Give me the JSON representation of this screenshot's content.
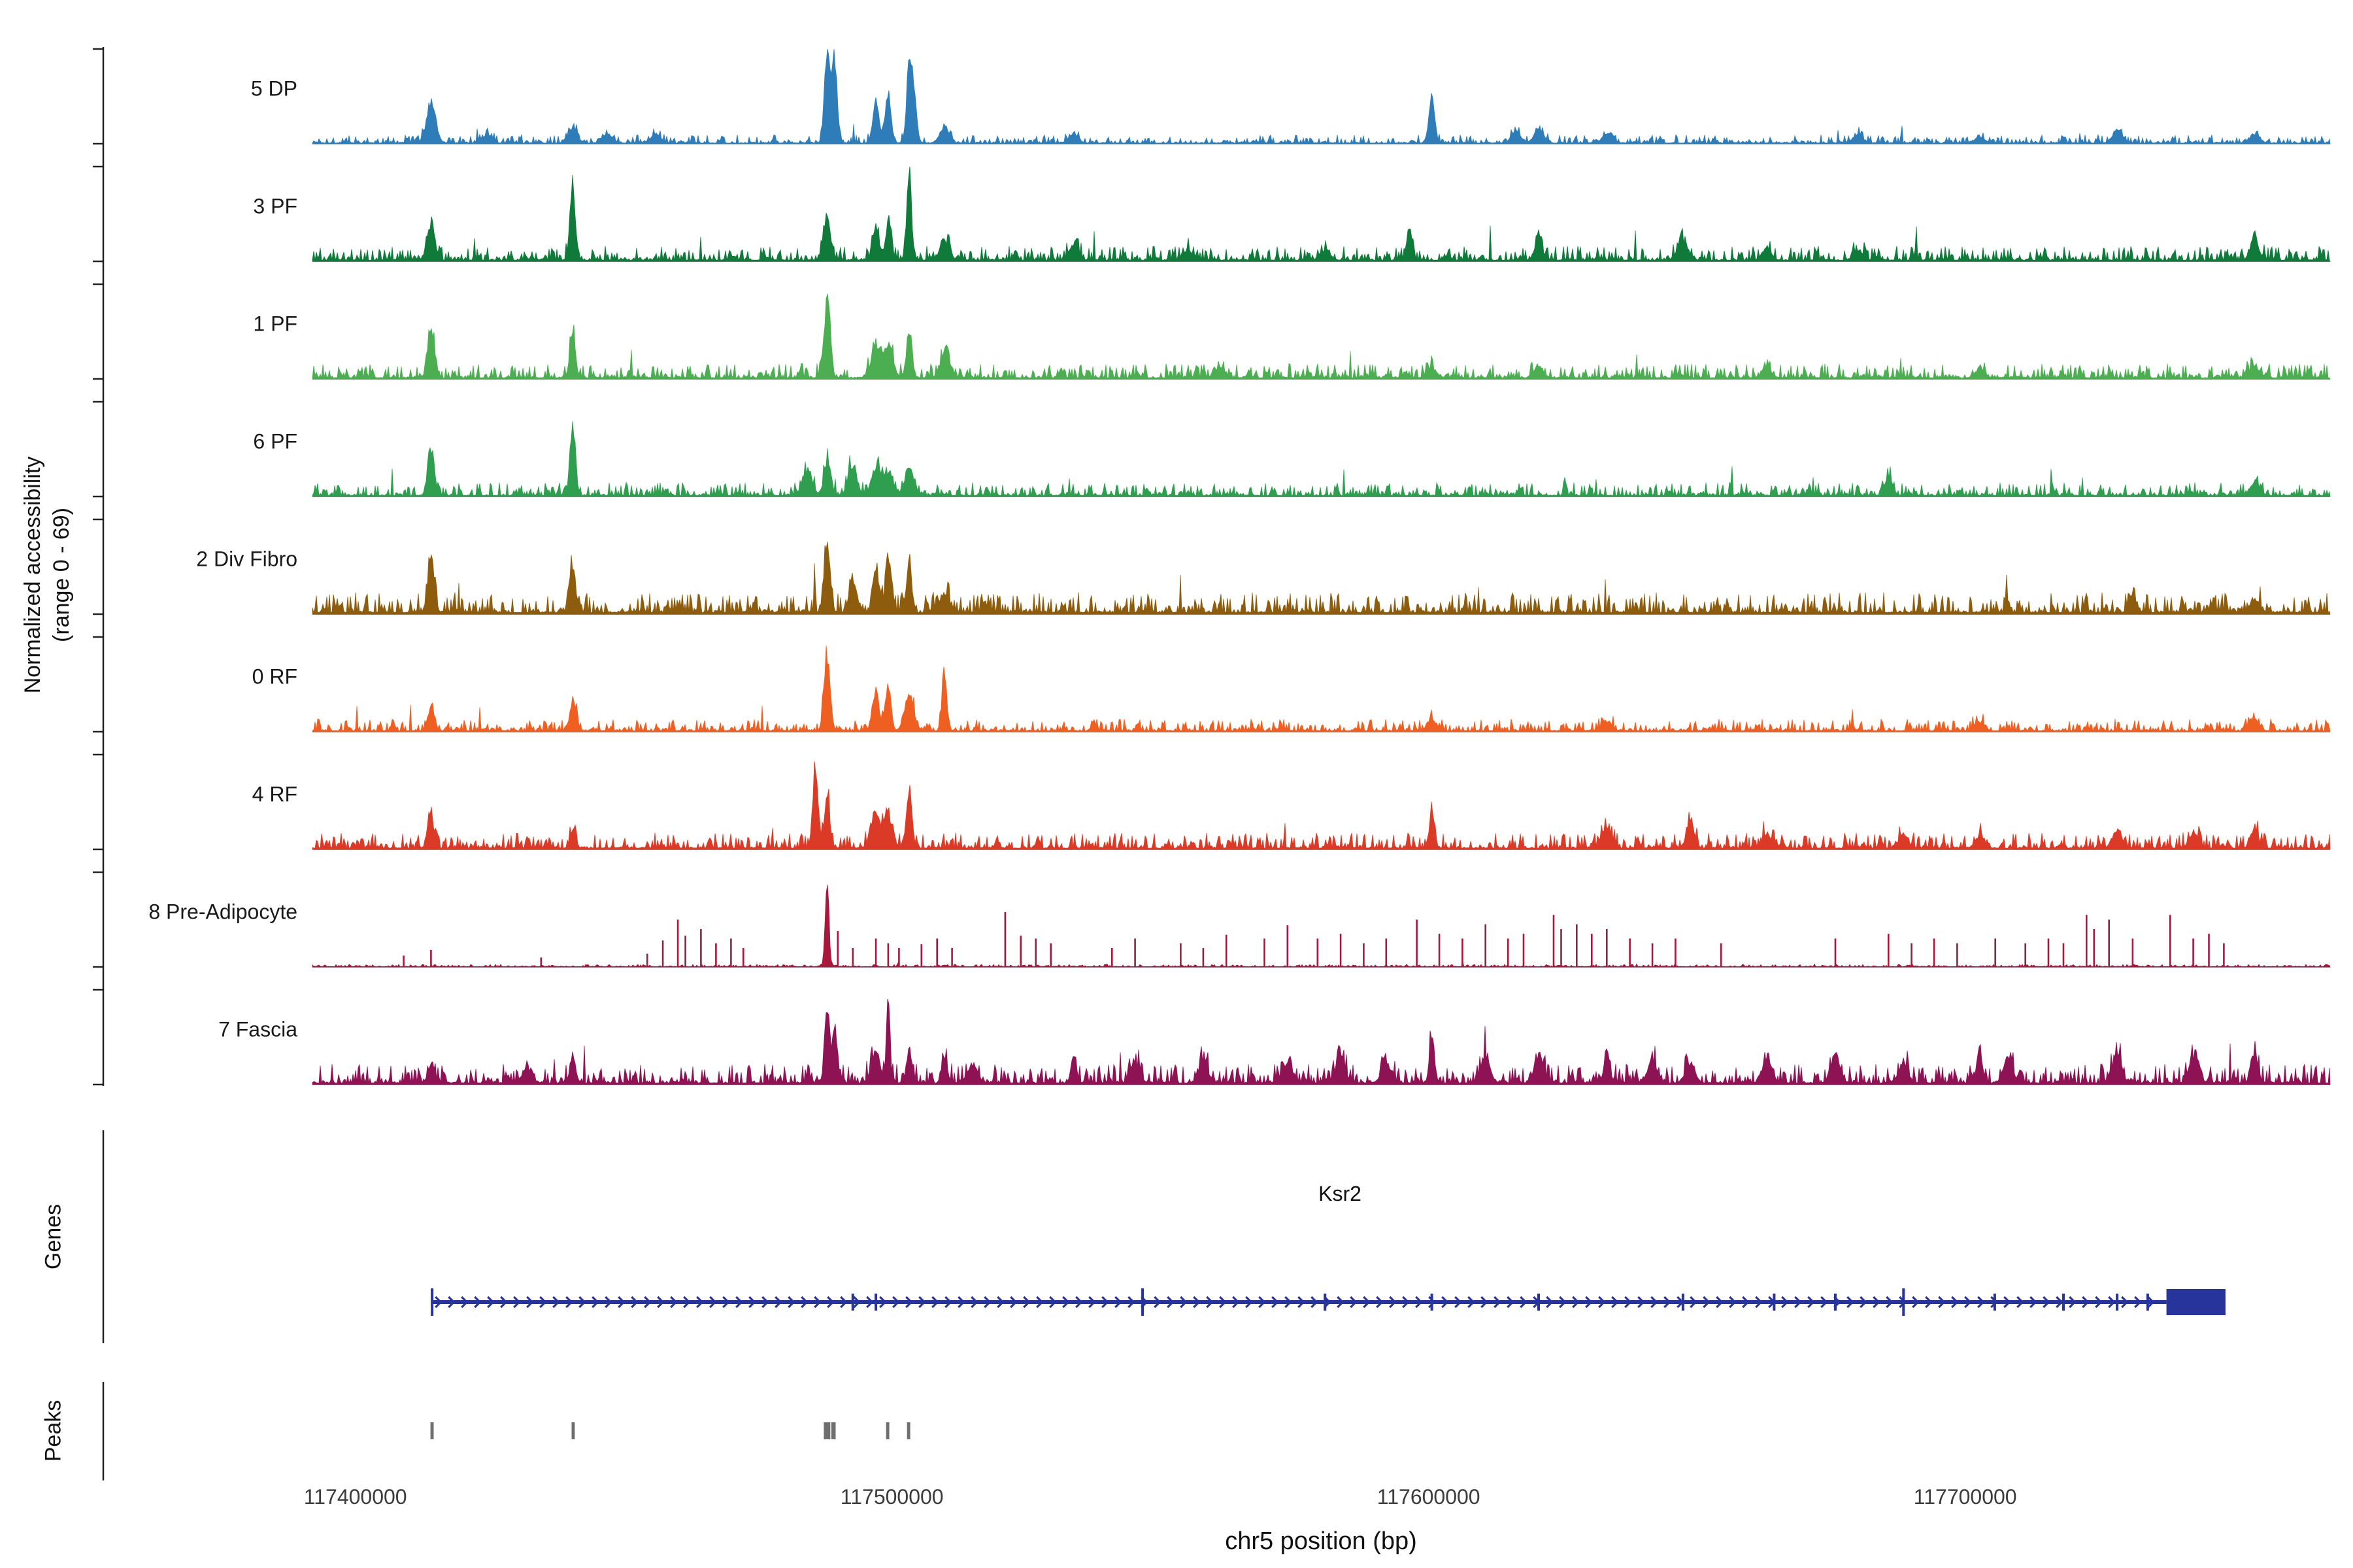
{
  "chart_data": {
    "type": "area",
    "title": "",
    "xlabel": "chr5 position (bp)",
    "ylabel_lines": [
      "Normalized accessibility",
      "(range 0 - 69)"
    ],
    "genes_section_label": "Genes",
    "peaks_section_label": "Peaks",
    "x_domain": [
      117392000,
      117768000
    ],
    "x_ticks": [
      117400000,
      117500000,
      117600000,
      117700000
    ],
    "y_range": [
      0,
      69
    ],
    "noise_seed": 1337,
    "tracks": [
      {
        "label": "5 DP",
        "color": "#2f7db8",
        "noise": 0.035,
        "peaks": [
          [
            117414100,
            0.42
          ],
          [
            117424600,
            0.08
          ],
          [
            117440500,
            0.16
          ],
          [
            117447300,
            0.08
          ],
          [
            117455900,
            0.1
          ],
          [
            117487900,
            1.0,
            500
          ],
          [
            117489300,
            0.85,
            500
          ],
          [
            117497000,
            0.42,
            600
          ],
          [
            117499300,
            0.5,
            500
          ],
          [
            117503200,
            0.78,
            500
          ],
          [
            117504100,
            0.5,
            500
          ],
          [
            117509800,
            0.18
          ],
          [
            117533900,
            0.1
          ],
          [
            117600600,
            0.55,
            500
          ],
          [
            117616300,
            0.12
          ],
          [
            117620500,
            0.15
          ],
          [
            117633200,
            0.1
          ],
          [
            117680000,
            0.1
          ],
          [
            117702700,
            0.07
          ],
          [
            117728300,
            0.14
          ],
          [
            117753900,
            0.1
          ]
        ],
        "spikes": []
      },
      {
        "label": "3 PF",
        "color": "#0f7a3a",
        "noise": 0.06,
        "peaks": [
          [
            117414100,
            0.38,
            700
          ],
          [
            117440500,
            0.75,
            500
          ],
          [
            117487900,
            0.5,
            600
          ],
          [
            117497000,
            0.3,
            600
          ],
          [
            117499300,
            0.42,
            500
          ],
          [
            117503200,
            0.88,
            450
          ],
          [
            117509800,
            0.2
          ],
          [
            117533900,
            0.15
          ],
          [
            117555200,
            0.1
          ],
          [
            117580800,
            0.1
          ],
          [
            117596400,
            0.32,
            500
          ],
          [
            117620500,
            0.28,
            600
          ],
          [
            117647400,
            0.2
          ],
          [
            117663000,
            0.12
          ],
          [
            117680000,
            0.1
          ],
          [
            117753900,
            0.22,
            800
          ]
        ],
        "spikes": []
      },
      {
        "label": "1 PF",
        "color": "#4bae50",
        "noise": 0.06,
        "peaks": [
          [
            117414100,
            0.55,
            600
          ],
          [
            117440500,
            0.5,
            500
          ],
          [
            117487900,
            0.78,
            550
          ],
          [
            117497000,
            0.3
          ],
          [
            117499300,
            0.33
          ],
          [
            117503200,
            0.5,
            500
          ],
          [
            117509800,
            0.24
          ],
          [
            117560900,
            0.1
          ],
          [
            117600600,
            0.1
          ],
          [
            117620500,
            0.12
          ],
          [
            117663000,
            0.1
          ],
          [
            117702700,
            0.08
          ],
          [
            117753900,
            0.12
          ]
        ],
        "spikes": []
      },
      {
        "label": "6 PF",
        "color": "#2f9e4f",
        "noise": 0.055,
        "peaks": [
          [
            117414100,
            0.5,
            600
          ],
          [
            117440500,
            0.75,
            500
          ],
          [
            117484200,
            0.25,
            900
          ],
          [
            117487900,
            0.33,
            600
          ],
          [
            117492700,
            0.3,
            800
          ],
          [
            117497000,
            0.28
          ],
          [
            117499300,
            0.24
          ],
          [
            117503200,
            0.28
          ],
          [
            117685700,
            0.2,
            700
          ],
          [
            117753900,
            0.12
          ]
        ],
        "spikes": []
      },
      {
        "label": "2 Div Fibro",
        "color": "#8e5c0d",
        "noise": 0.085,
        "peaks": [
          [
            117414100,
            0.58,
            600
          ],
          [
            117440500,
            0.48,
            550
          ],
          [
            117487900,
            0.8,
            550
          ],
          [
            117492700,
            0.3,
            700
          ],
          [
            117497000,
            0.45,
            550
          ],
          [
            117499300,
            0.5,
            500
          ],
          [
            117503200,
            0.5,
            500
          ],
          [
            117509800,
            0.2
          ],
          [
            117731200,
            0.18,
            700
          ],
          [
            117753900,
            0.14
          ]
        ],
        "spikes": []
      },
      {
        "label": "0 RF",
        "color": "#ef5f22",
        "noise": 0.05,
        "peaks": [
          [
            117414100,
            0.25,
            600
          ],
          [
            117440500,
            0.33,
            500
          ],
          [
            117487900,
            0.8,
            550
          ],
          [
            117497000,
            0.4,
            550
          ],
          [
            117499300,
            0.5,
            500
          ],
          [
            117503200,
            0.38
          ],
          [
            117509800,
            0.55,
            450
          ],
          [
            117600600,
            0.12
          ],
          [
            117633200,
            0.1
          ],
          [
            117702700,
            0.09
          ],
          [
            117753900,
            0.12
          ]
        ],
        "spikes": []
      },
      {
        "label": "4 RF",
        "color": "#db3b26",
        "noise": 0.065,
        "peaks": [
          [
            117414100,
            0.3,
            600
          ],
          [
            117440500,
            0.2,
            500
          ],
          [
            117485700,
            0.8,
            500
          ],
          [
            117487900,
            0.55,
            500
          ],
          [
            117497000,
            0.33
          ],
          [
            117499300,
            0.28
          ],
          [
            117503200,
            0.6,
            500
          ],
          [
            117600600,
            0.4,
            450
          ],
          [
            117633200,
            0.22
          ],
          [
            117648800,
            0.28,
            700
          ],
          [
            117663000,
            0.15
          ],
          [
            117688500,
            0.14
          ],
          [
            117702700,
            0.12
          ],
          [
            117728300,
            0.18
          ],
          [
            117742500,
            0.14
          ],
          [
            117753900,
            0.2,
            700
          ]
        ],
        "spikes": []
      },
      {
        "label": "8 Pre-Adipocyte",
        "color": "#a8173c",
        "noise": 0.01,
        "peaks": [
          [
            117487900,
            0.92,
            350
          ]
        ],
        "spikes": [
          [
            117409000,
            0.12
          ],
          [
            117414100,
            0.18
          ],
          [
            117434600,
            0.1
          ],
          [
            117454400,
            0.14
          ],
          [
            117457300,
            0.28
          ],
          [
            117460100,
            0.5
          ],
          [
            117461500,
            0.33
          ],
          [
            117464400,
            0.4
          ],
          [
            117467200,
            0.25
          ],
          [
            117470000,
            0.3
          ],
          [
            117472300,
            0.2
          ],
          [
            117489900,
            0.38
          ],
          [
            117492700,
            0.2
          ],
          [
            117497000,
            0.3
          ],
          [
            117499300,
            0.25
          ],
          [
            117501300,
            0.2
          ],
          [
            117505500,
            0.24
          ],
          [
            117508400,
            0.3
          ],
          [
            117511200,
            0.2
          ],
          [
            117521100,
            0.58
          ],
          [
            117524000,
            0.33
          ],
          [
            117526800,
            0.3
          ],
          [
            117529600,
            0.25
          ],
          [
            117541000,
            0.2
          ],
          [
            117545300,
            0.3
          ],
          [
            117553800,
            0.25
          ],
          [
            117558000,
            0.2
          ],
          [
            117562300,
            0.34
          ],
          [
            117569400,
            0.3
          ],
          [
            117573700,
            0.44
          ],
          [
            117579300,
            0.3
          ],
          [
            117583600,
            0.35
          ],
          [
            117587900,
            0.25
          ],
          [
            117592100,
            0.3
          ],
          [
            117597800,
            0.5
          ],
          [
            117602000,
            0.35
          ],
          [
            117606300,
            0.3
          ],
          [
            117610600,
            0.45
          ],
          [
            117614800,
            0.3
          ],
          [
            117617700,
            0.35
          ],
          [
            117623300,
            0.55
          ],
          [
            117624700,
            0.4
          ],
          [
            117627600,
            0.45
          ],
          [
            117630400,
            0.35
          ],
          [
            117633200,
            0.4
          ],
          [
            117637500,
            0.3
          ],
          [
            117641700,
            0.25
          ],
          [
            117646000,
            0.3
          ],
          [
            117654500,
            0.25
          ],
          [
            117675800,
            0.3
          ],
          [
            117685700,
            0.35
          ],
          [
            117690000,
            0.25
          ],
          [
            117694200,
            0.3
          ],
          [
            117698500,
            0.25
          ],
          [
            117705600,
            0.3
          ],
          [
            117711200,
            0.25
          ],
          [
            117715500,
            0.3
          ],
          [
            117718300,
            0.25
          ],
          [
            117722600,
            0.55
          ],
          [
            117724000,
            0.4
          ],
          [
            117726800,
            0.5
          ],
          [
            117731200,
            0.3
          ],
          [
            117738200,
            0.55
          ],
          [
            117742500,
            0.3
          ],
          [
            117745400,
            0.35
          ],
          [
            117748200,
            0.25
          ]
        ]
      },
      {
        "label": "7 Fascia",
        "color": "#8e1355",
        "noise": 0.08,
        "peaks": [
          [
            117414100,
            0.2,
            600
          ],
          [
            117432000,
            0.14
          ],
          [
            117440500,
            0.3,
            500
          ],
          [
            117487900,
            0.75,
            450
          ],
          [
            117489300,
            0.6,
            450
          ],
          [
            117497000,
            0.3
          ],
          [
            117499300,
            1.0,
            300
          ],
          [
            117503200,
            0.35,
            500
          ],
          [
            117509800,
            0.3,
            500
          ],
          [
            117515000,
            0.2
          ],
          [
            117533900,
            0.25,
            500
          ],
          [
            117545300,
            0.2
          ],
          [
            117558000,
            0.22
          ],
          [
            117573700,
            0.2
          ],
          [
            117583600,
            0.28
          ],
          [
            117592100,
            0.2
          ],
          [
            117600600,
            0.45,
            450
          ],
          [
            117610600,
            0.25
          ],
          [
            117620500,
            0.28
          ],
          [
            117633200,
            0.35,
            500
          ],
          [
            117641700,
            0.25
          ],
          [
            117648800,
            0.2
          ],
          [
            117663000,
            0.25
          ],
          [
            117675800,
            0.3
          ],
          [
            117688500,
            0.2
          ],
          [
            117702700,
            0.35,
            500
          ],
          [
            117708000,
            0.25
          ],
          [
            117728300,
            0.3
          ],
          [
            117742500,
            0.25
          ],
          [
            117753900,
            0.3,
            600
          ]
        ],
        "spikes": []
      }
    ],
    "genes": {
      "name": "Ksr2",
      "color": "#27349c",
      "start": 117414200,
      "end": 117737500,
      "direction": "right",
      "end_box": [
        117737500,
        117748500
      ],
      "exon_ticks": [
        117414300,
        117492700,
        117497000,
        117546700,
        117580700,
        117600600,
        117620500,
        117647400,
        117664400,
        117675800,
        117688500,
        117705500,
        117718300,
        117728300,
        117734000
      ],
      "tall_ticks": [
        117414300,
        117546700,
        117688500
      ]
    },
    "peaks_track": {
      "color": "#6f6f6f",
      "intervals": [
        [
          117414000,
          117414600
        ],
        [
          117440300,
          117440900
        ],
        [
          117487300,
          117488500
        ],
        [
          117488700,
          117489500
        ],
        [
          117498900,
          117499500
        ],
        [
          117502800,
          117503400
        ]
      ]
    }
  }
}
